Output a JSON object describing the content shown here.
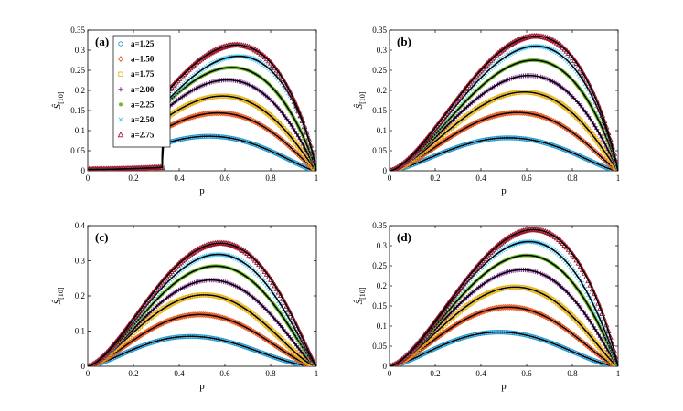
{
  "figure": {
    "xlabel": "p",
    "ylabel": "Ŝ",
    "ylabel_sub": "[10]"
  },
  "legend": {
    "placement": "top-left of panel (a)",
    "entries": [
      {
        "label": "a=1.25",
        "color": "#1f9bd4",
        "marker": "circle"
      },
      {
        "label": "a=1.50",
        "color": "#e8551d",
        "marker": "diamond"
      },
      {
        "label": "a=1.75",
        "color": "#e7b416",
        "marker": "square"
      },
      {
        "label": "a=2.00",
        "color": "#7b2d8e",
        "marker": "plus"
      },
      {
        "label": "a=2.25",
        "color": "#6fb82c",
        "marker": "dot"
      },
      {
        "label": "a=2.50",
        "color": "#4cc4ee",
        "marker": "x"
      },
      {
        "label": "a=2.75",
        "color": "#a2142f",
        "marker": "triangle"
      }
    ]
  },
  "chart_data": [
    {
      "panel": "(a)",
      "type": "line",
      "xlabel": "p",
      "ylabel": "Ŝ[10]",
      "xlim": [
        0,
        1
      ],
      "ylim": [
        0,
        0.35
      ],
      "xticks": [
        0,
        0.2,
        0.4,
        0.6,
        0.8,
        1
      ],
      "xtick_labels": [
        "0",
        "0.2",
        "0.4",
        "0.6",
        "0.8",
        "1"
      ],
      "yticks": [
        0,
        0.05,
        0.1,
        0.15,
        0.2,
        0.25,
        0.3,
        0.35
      ],
      "ytick_labels": [
        "0",
        "0.05",
        "0.1",
        "0.15",
        "0.2",
        "0.25",
        "0.3",
        "0.35"
      ],
      "series": [
        {
          "name": "a=1.25",
          "x_end": 0.712,
          "peak_x": 0.53,
          "peak_y": 0.086,
          "y_end": 0.062
        },
        {
          "name": "a=1.50",
          "x_end": 0.667,
          "peak_x": 0.57,
          "peak_y": 0.144,
          "y_end": 0.13
        },
        {
          "name": "a=1.75",
          "x_end": 0.75,
          "peak_x": 0.59,
          "peak_y": 0.186,
          "y_end": 0.16
        },
        {
          "name": "a=2.00",
          "x_end": 0.714,
          "peak_x": 0.61,
          "peak_y": 0.226,
          "y_end": 0.21
        },
        {
          "name": "a=2.25",
          "x_end": 0.81,
          "peak_x": 0.63,
          "peak_y": 0.257,
          "y_end": 0.2
        },
        {
          "name": "a=2.50",
          "x_end": 0.712,
          "peak_x": 0.66,
          "peak_y": 0.285,
          "y_end": 0.283
        },
        {
          "name": "a=2.75",
          "x_end": 0.655,
          "peak_x": 0.65,
          "peak_y": 0.313,
          "y_end": 0.312
        }
      ]
    },
    {
      "panel": "(b)",
      "type": "line",
      "xlabel": "p",
      "ylabel": "Ŝ[10]",
      "xlim": [
        0,
        1
      ],
      "ylim": [
        0,
        0.35
      ],
      "xticks": [
        0,
        0.2,
        0.4,
        0.6,
        0.8,
        1
      ],
      "xtick_labels": [
        "0",
        "0.2",
        "0.4",
        "0.6",
        "0.8",
        "1"
      ],
      "yticks": [
        0,
        0.05,
        0.1,
        0.15,
        0.2,
        0.25,
        0.3,
        0.35
      ],
      "ytick_labels": [
        "0",
        "0.05",
        "0.1",
        "0.15",
        "0.2",
        "0.25",
        "0.3",
        "0.35"
      ],
      "series": [
        {
          "name": "a=1.25",
          "x_end": 0.712,
          "peak_x": 0.52,
          "peak_y": 0.082,
          "y_end": 0.065
        },
        {
          "name": "a=1.50",
          "x_end": 0.667,
          "peak_x": 0.56,
          "peak_y": 0.145,
          "y_end": 0.135
        },
        {
          "name": "a=1.75",
          "x_end": 0.75,
          "peak_x": 0.59,
          "peak_y": 0.196,
          "y_end": 0.175
        },
        {
          "name": "a=2.00",
          "x_end": 0.714,
          "peak_x": 0.61,
          "peak_y": 0.237,
          "y_end": 0.225
        },
        {
          "name": "a=2.25",
          "x_end": 0.81,
          "peak_x": 0.63,
          "peak_y": 0.275,
          "y_end": 0.21
        },
        {
          "name": "a=2.50",
          "x_end": 0.712,
          "peak_x": 0.64,
          "peak_y": 0.31,
          "y_end": 0.298
        },
        {
          "name": "a=2.75",
          "x_end": 0.655,
          "peak_x": 0.64,
          "peak_y": 0.335,
          "y_end": 0.333
        }
      ]
    },
    {
      "panel": "(c)",
      "type": "line",
      "xlabel": "p",
      "ylabel": "Ŝ[10]",
      "xlim": [
        0,
        1
      ],
      "ylim": [
        0,
        0.4
      ],
      "xticks": [
        0,
        0.2,
        0.4,
        0.6,
        0.8,
        1
      ],
      "xtick_labels": [
        "0",
        "0.2",
        "0.4",
        "0.6",
        "0.8",
        "1"
      ],
      "yticks": [
        0,
        0.1,
        0.2,
        0.3,
        0.4
      ],
      "ytick_labels": [
        "0",
        "0.1",
        "0.2",
        "0.3",
        "0.4"
      ],
      "series": [
        {
          "name": "a=1.25",
          "x_end": 0.712,
          "peak_x": 0.45,
          "peak_y": 0.085,
          "y_end": 0.06
        },
        {
          "name": "a=1.50",
          "x_end": 0.667,
          "peak_x": 0.49,
          "peak_y": 0.147,
          "y_end": 0.12
        },
        {
          "name": "a=1.75",
          "x_end": 0.75,
          "peak_x": 0.51,
          "peak_y": 0.203,
          "y_end": 0.16
        },
        {
          "name": "a=2.00",
          "x_end": 0.714,
          "peak_x": 0.54,
          "peak_y": 0.245,
          "y_end": 0.215
        },
        {
          "name": "a=2.25",
          "x_end": 0.81,
          "peak_x": 0.56,
          "peak_y": 0.285,
          "y_end": 0.19
        },
        {
          "name": "a=2.50",
          "x_end": 0.712,
          "peak_x": 0.57,
          "peak_y": 0.318,
          "y_end": 0.285
        },
        {
          "name": "a=2.75",
          "x_end": 0.655,
          "peak_x": 0.58,
          "peak_y": 0.35,
          "y_end": 0.342
        }
      ]
    },
    {
      "panel": "(d)",
      "type": "line",
      "xlabel": "p",
      "ylabel": "Ŝ[10]",
      "xlim": [
        0,
        1
      ],
      "ylim": [
        0,
        0.35
      ],
      "xticks": [
        0,
        0.2,
        0.4,
        0.6,
        0.8,
        1
      ],
      "xtick_labels": [
        "0",
        "0.2",
        "0.4",
        "0.6",
        "0.8",
        "1"
      ],
      "yticks": [
        0,
        0.05,
        0.1,
        0.15,
        0.2,
        0.25,
        0.3,
        0.35
      ],
      "ytick_labels": [
        "0",
        "0.05",
        "0.1",
        "0.15",
        "0.2",
        "0.25",
        "0.3",
        "0.35"
      ],
      "series": [
        {
          "name": "a=1.25",
          "x_end": 0.712,
          "peak_x": 0.48,
          "peak_y": 0.085,
          "y_end": 0.062
        },
        {
          "name": "a=1.50",
          "x_end": 0.667,
          "peak_x": 0.52,
          "peak_y": 0.147,
          "y_end": 0.13
        },
        {
          "name": "a=1.75",
          "x_end": 0.75,
          "peak_x": 0.55,
          "peak_y": 0.197,
          "y_end": 0.165
        },
        {
          "name": "a=2.00",
          "x_end": 0.714,
          "peak_x": 0.58,
          "peak_y": 0.24,
          "y_end": 0.225
        },
        {
          "name": "a=2.25",
          "x_end": 0.81,
          "peak_x": 0.6,
          "peak_y": 0.276,
          "y_end": 0.205
        },
        {
          "name": "a=2.50",
          "x_end": 0.712,
          "peak_x": 0.61,
          "peak_y": 0.31,
          "y_end": 0.295
        },
        {
          "name": "a=2.75",
          "x_end": 0.655,
          "peak_x": 0.63,
          "peak_y": 0.34,
          "y_end": 0.338
        }
      ]
    }
  ]
}
